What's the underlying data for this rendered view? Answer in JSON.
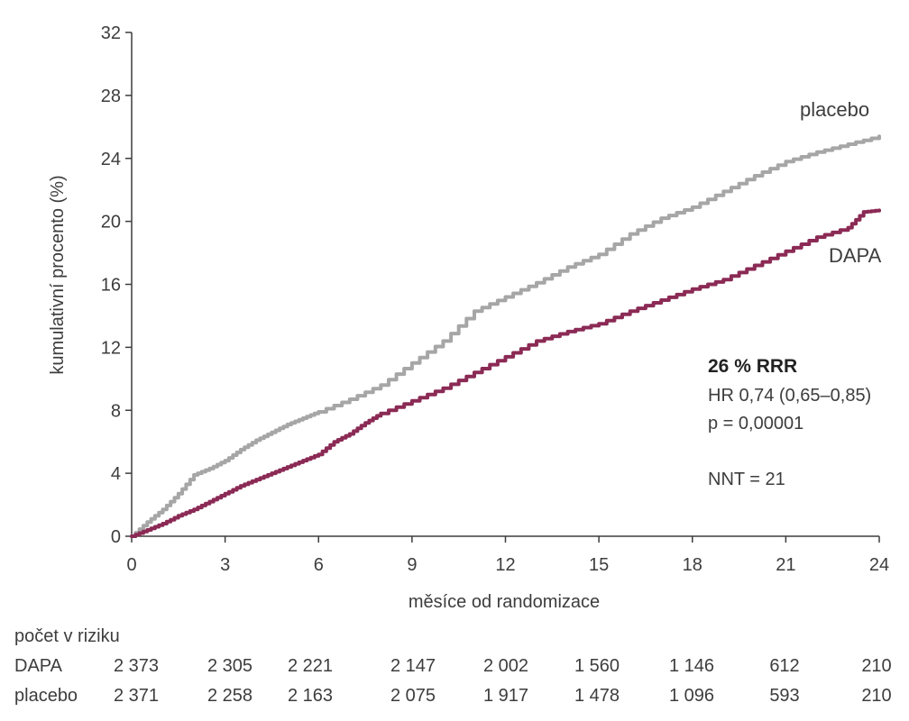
{
  "chart_data": {
    "type": "line",
    "title": "",
    "xlabel": "měsíce od randomizace",
    "ylabel": "kumulativní procento (%)",
    "xlim": [
      0,
      24
    ],
    "ylim": [
      0,
      32
    ],
    "x_ticks": [
      "0",
      "3",
      "6",
      "9",
      "12",
      "15",
      "18",
      "21",
      "24"
    ],
    "y_ticks": [
      "0",
      "4",
      "8",
      "12",
      "16",
      "20",
      "24",
      "28",
      "32"
    ],
    "grid": false,
    "series": [
      {
        "name": "placebo",
        "color": "#a6a6a6",
        "x": [
          0,
          0.5,
          1,
          1.5,
          2,
          2.5,
          3,
          3.5,
          4,
          4.5,
          5,
          5.5,
          6,
          7,
          8,
          9,
          10,
          11,
          12,
          13,
          14,
          15,
          16,
          17,
          18,
          19,
          20,
          21,
          22,
          23,
          24
        ],
        "y": [
          0,
          0.9,
          1.7,
          2.7,
          3.9,
          4.3,
          4.8,
          5.5,
          6.1,
          6.6,
          7.1,
          7.5,
          7.9,
          8.7,
          9.6,
          11.0,
          12.4,
          14.3,
          15.2,
          16.1,
          17.1,
          17.9,
          19.2,
          20.2,
          20.9,
          21.9,
          22.9,
          23.8,
          24.4,
          24.9,
          25.4
        ]
      },
      {
        "name": "DAPA",
        "color": "#8b2a55",
        "x": [
          0,
          0.5,
          1,
          1.5,
          2,
          2.5,
          3,
          3.5,
          4,
          4.5,
          5,
          5.5,
          6,
          6.5,
          7,
          7.5,
          8,
          9,
          10,
          11,
          12,
          13,
          14,
          15,
          16,
          17,
          18,
          19,
          20,
          21,
          22,
          23,
          23.5,
          24
        ],
        "y": [
          0,
          0.4,
          0.8,
          1.3,
          1.7,
          2.2,
          2.7,
          3.2,
          3.6,
          4.0,
          4.4,
          4.8,
          5.2,
          6.0,
          6.5,
          7.2,
          7.8,
          8.6,
          9.4,
          10.4,
          11.4,
          12.4,
          13.0,
          13.5,
          14.3,
          15.0,
          15.7,
          16.3,
          17.2,
          18.1,
          19.0,
          19.6,
          20.6,
          20.7
        ]
      }
    ],
    "annotations": {
      "rrr": "26 % RRR",
      "hr": "HR 0,74 (0,65–0,85)",
      "p": "p = 0,00001",
      "nnt": "NNT = 21"
    },
    "risk_table": {
      "title": "počet v riziku",
      "rows": [
        {
          "label": "DAPA",
          "values": [
            "2 373",
            "2 305",
            "2 221",
            "2 147",
            "2 002",
            "1 560",
            "1 146",
            "612",
            "210"
          ]
        },
        {
          "label": "placebo",
          "values": [
            "2 371",
            "2 258",
            "2 163",
            "2 075",
            "1 917",
            "1 478",
            "1 096",
            "593",
            "210"
          ]
        }
      ]
    }
  }
}
